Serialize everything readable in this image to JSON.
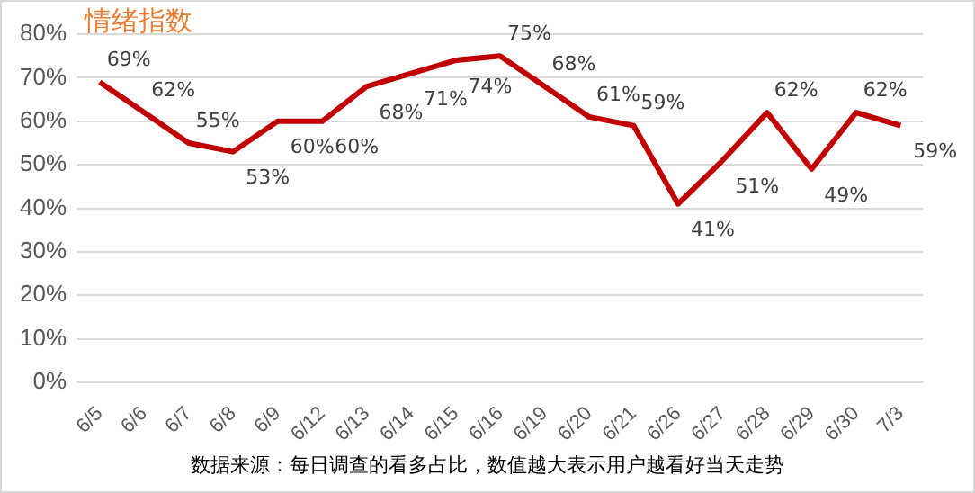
{
  "chart_data": {
    "type": "line",
    "title": "情绪指数",
    "categories": [
      "6/5",
      "6/6",
      "6/7",
      "6/8",
      "6/9",
      "6/12",
      "6/13",
      "6/14",
      "6/15",
      "6/16",
      "6/19",
      "6/20",
      "6/21",
      "6/26",
      "6/27",
      "6/28",
      "6/29",
      "6/30",
      "7/3"
    ],
    "series": [
      {
        "color": "#c00000",
        "values": [
          69,
          62,
          55,
          53,
          60,
          60,
          68,
          71,
          74,
          75,
          68,
          61,
          59,
          41,
          51,
          62,
          49,
          62,
          59
        ],
        "value_labels": [
          "69%",
          "62%",
          "55%",
          "53%",
          "60%",
          "60%",
          "68%",
          "71%",
          "74%",
          "75%",
          "68%",
          "61%",
          "59%",
          "41%",
          "51%",
          "62%",
          "49%",
          "62%",
          "59%"
        ]
      }
    ],
    "ylim": [
      0,
      80
    ],
    "yticks": [
      {
        "value": 0,
        "label": "0%"
      },
      {
        "value": 10,
        "label": "10%"
      },
      {
        "value": 20,
        "label": "20%"
      },
      {
        "value": 30,
        "label": "30%"
      },
      {
        "value": 40,
        "label": "40%"
      },
      {
        "value": 50,
        "label": "50%"
      },
      {
        "value": 60,
        "label": "60%"
      },
      {
        "value": 70,
        "label": "70%"
      },
      {
        "value": 80,
        "label": "80%"
      }
    ],
    "grid": "y",
    "legend": false,
    "marker": "none",
    "line_style": "solid",
    "annotations": [
      "数据来源：每日调查的看多占比，数值越大表示用户越看好当天走势"
    ]
  }
}
